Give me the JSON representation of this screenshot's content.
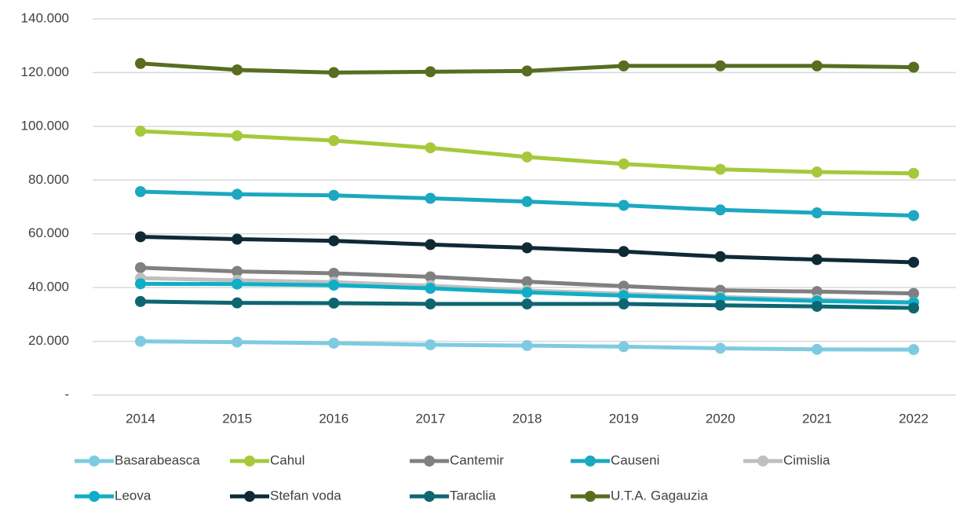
{
  "chart_data": {
    "type": "line",
    "x": [
      "2014",
      "2015",
      "2016",
      "2017",
      "2018",
      "2019",
      "2020",
      "2021",
      "2022"
    ],
    "ylim": [
      0,
      140000
    ],
    "yticks": [
      {
        "value": 0,
        "label": "-"
      },
      {
        "value": 20000,
        "label": "20.000"
      },
      {
        "value": 40000,
        "label": "40.000"
      },
      {
        "value": 60000,
        "label": "60.000"
      },
      {
        "value": 80000,
        "label": "80.000"
      },
      {
        "value": 100000,
        "label": "100.000"
      },
      {
        "value": 120000,
        "label": "120.000"
      },
      {
        "value": 140000,
        "label": "140.000"
      }
    ],
    "grid": true,
    "legend": "bottom",
    "series": [
      {
        "name": "Basarabeasca",
        "color": "#7ecbe1",
        "values": [
          20000,
          19700,
          19300,
          18700,
          18400,
          18000,
          17400,
          17000,
          16900
        ]
      },
      {
        "name": "Cahul",
        "color": "#a5c93b",
        "values": [
          98200,
          96500,
          94700,
          92000,
          88600,
          86000,
          84000,
          83000,
          82500
        ]
      },
      {
        "name": "Cantemir",
        "color": "#808080",
        "values": [
          47400,
          46000,
          45300,
          44000,
          42200,
          40500,
          39000,
          38500,
          37800
        ]
      },
      {
        "name": "Causeni",
        "color": "#1ba8c0",
        "values": [
          75700,
          74700,
          74300,
          73200,
          72000,
          70600,
          68900,
          67800,
          66800
        ]
      },
      {
        "name": "Cimislia",
        "color": "#bfbfbf",
        "values": [
          43500,
          42700,
          42000,
          40700,
          38900,
          37700,
          36500,
          35500,
          34500
        ]
      },
      {
        "name": "Leova",
        "color": "#10aec6",
        "values": [
          41400,
          41300,
          40900,
          39700,
          38200,
          37000,
          36000,
          35000,
          34400
        ]
      },
      {
        "name": "Stefan voda",
        "color": "#0e2a35",
        "values": [
          58900,
          58000,
          57400,
          56000,
          54800,
          53400,
          51500,
          50400,
          49400
        ]
      },
      {
        "name": "Taraclia",
        "color": "#0e6670",
        "values": [
          34800,
          34300,
          34200,
          33900,
          33900,
          33900,
          33400,
          33000,
          32400
        ]
      },
      {
        "name": "U.T.A. Gagauzia",
        "color": "#586d1f",
        "values": [
          123400,
          121000,
          120000,
          120300,
          120600,
          122500,
          122500,
          122500,
          122000
        ]
      }
    ]
  }
}
